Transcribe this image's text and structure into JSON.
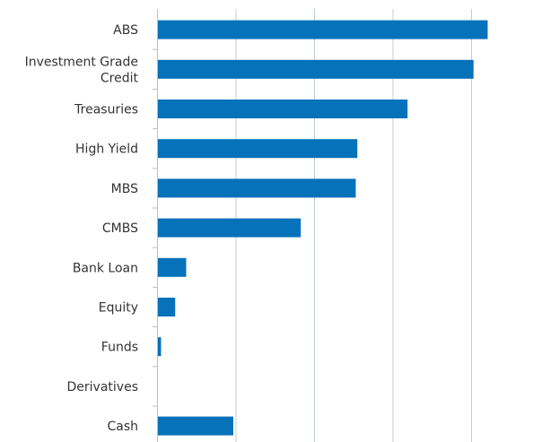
{
  "chart_data": {
    "type": "bar",
    "orientation": "horizontal",
    "categories": [
      "ABS",
      "Investment Grade Credit",
      "Treasuries",
      "High Yield",
      "MBS",
      "CMBS",
      "Bank Loan",
      "Equity",
      "Funds",
      "Derivatives",
      "Cash"
    ],
    "category_lines": [
      [
        "ABS"
      ],
      [
        "Investment Grade",
        "Credit"
      ],
      [
        "Treasuries"
      ],
      [
        "High Yield"
      ],
      [
        "MBS"
      ],
      [
        "CMBS"
      ],
      [
        "Bank Loan"
      ],
      [
        "Equity"
      ],
      [
        "Funds"
      ],
      [
        "Derivatives"
      ],
      [
        "Cash"
      ]
    ],
    "values": [
      21.0,
      20.1,
      15.9,
      12.7,
      12.6,
      9.1,
      1.8,
      1.1,
      0.2,
      0.0,
      4.8
    ],
    "xlim": [
      0,
      20
    ],
    "x_gridlines": [
      0,
      5,
      10,
      15,
      20
    ],
    "grid": true,
    "legend": "none",
    "bar_color": "#0672b9"
  }
}
